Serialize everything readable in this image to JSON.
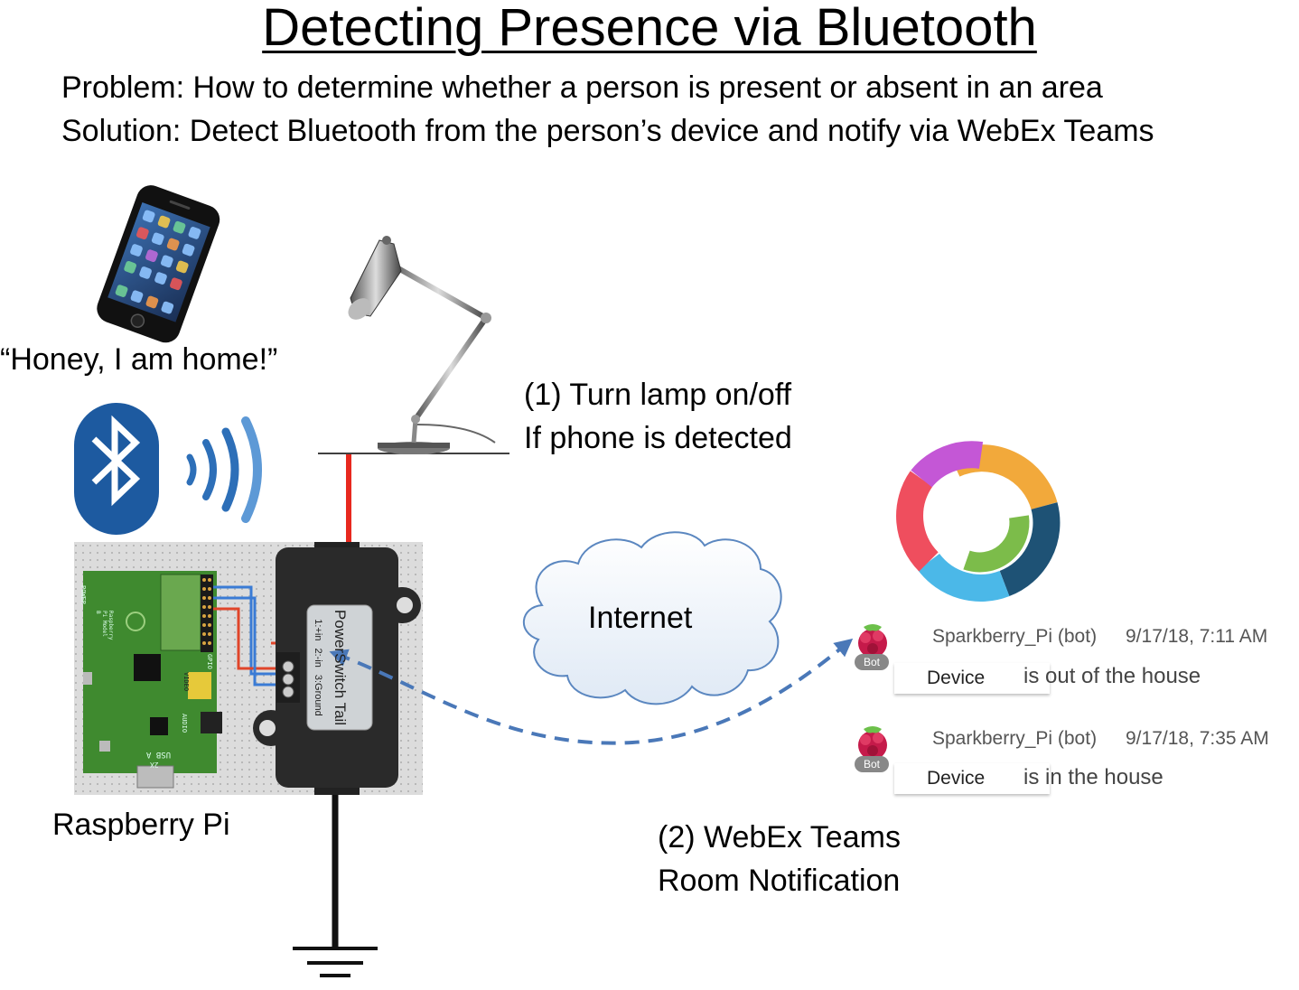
{
  "title": "Detecting Presence via Bluetooth",
  "problem": "Problem: How to determine whether a person is present or absent in an area",
  "solution": "Solution: Detect Bluetooth from the person’s device and notify via WebEx Teams",
  "phone_quote": "“Honey, I am home!”",
  "lamp_label_line1": "(1) Turn lamp on/off",
  "lamp_label_line2": "If phone is detected",
  "internet_label": "Internet",
  "pi_label": "Raspberry Pi",
  "powerswitch_label": "PowerSwitch Tail",
  "powerswitch_pins": [
    "1:+in",
    "2:-in",
    "3:Ground"
  ],
  "board_labels": [
    "POWER",
    "Raspberry Pi Model B",
    "VIDEO",
    "AUDIO",
    "GPIO",
    "USB A",
    "2X"
  ],
  "webex_label_line1": "(2) WebEx Teams",
  "webex_label_line2": "Room Notification",
  "messages": [
    {
      "sender": "Sparkberry_Pi (bot)",
      "time": "9/17/18, 7:11 AM",
      "badge": "Bot",
      "device": "Device",
      "text": "is out of the house"
    },
    {
      "sender": "Sparkberry_Pi (bot)",
      "time": "9/17/18, 7:35 AM",
      "badge": "Bot",
      "device": "Device",
      "text": "is in the house"
    }
  ],
  "colors": {
    "wire_red": "#e8281e",
    "arrow_blue": "#4a78b8",
    "bluetooth_blue": "#1d5aa0",
    "board_green": "#3f8a2f"
  }
}
